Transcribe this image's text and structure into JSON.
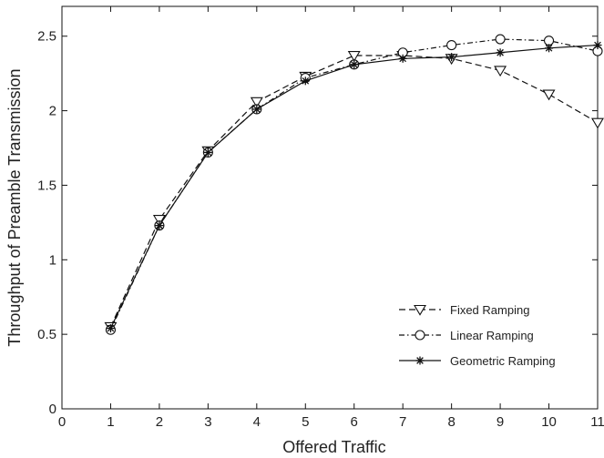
{
  "chart_data": {
    "type": "line",
    "xlabel": "Offered Traffic",
    "ylabel": "Throughput of Preamble Transmission",
    "xlim": [
      0,
      11
    ],
    "ylim": [
      0,
      2.7
    ],
    "xticks": [
      "0",
      "1",
      "2",
      "3",
      "4",
      "5",
      "6",
      "7",
      "8",
      "9",
      "10",
      "11"
    ],
    "yticks": [
      "0",
      "0.5",
      "1",
      "1.5",
      "2",
      "2.5"
    ],
    "grid": false,
    "legend_position": "bottom-right",
    "x": [
      1,
      2,
      3,
      4,
      5,
      6,
      7,
      8,
      9,
      10,
      11
    ],
    "series": [
      {
        "name": "Fixed Ramping",
        "marker": "triangle-down",
        "line_style": "dashed",
        "values": [
          0.55,
          1.27,
          1.73,
          2.06,
          2.23,
          2.37,
          2.37,
          2.35,
          2.27,
          2.11,
          1.92
        ]
      },
      {
        "name": "Linear Ramping",
        "marker": "circle",
        "line_style": "dash-dot",
        "values": [
          0.53,
          1.23,
          1.72,
          2.01,
          2.22,
          2.31,
          2.39,
          2.44,
          2.48,
          2.47,
          2.4
        ]
      },
      {
        "name": "Geometric Ramping",
        "marker": "star",
        "line_style": "solid",
        "values": [
          0.54,
          1.23,
          1.72,
          2.01,
          2.2,
          2.31,
          2.35,
          2.36,
          2.39,
          2.42,
          2.44
        ]
      }
    ]
  }
}
